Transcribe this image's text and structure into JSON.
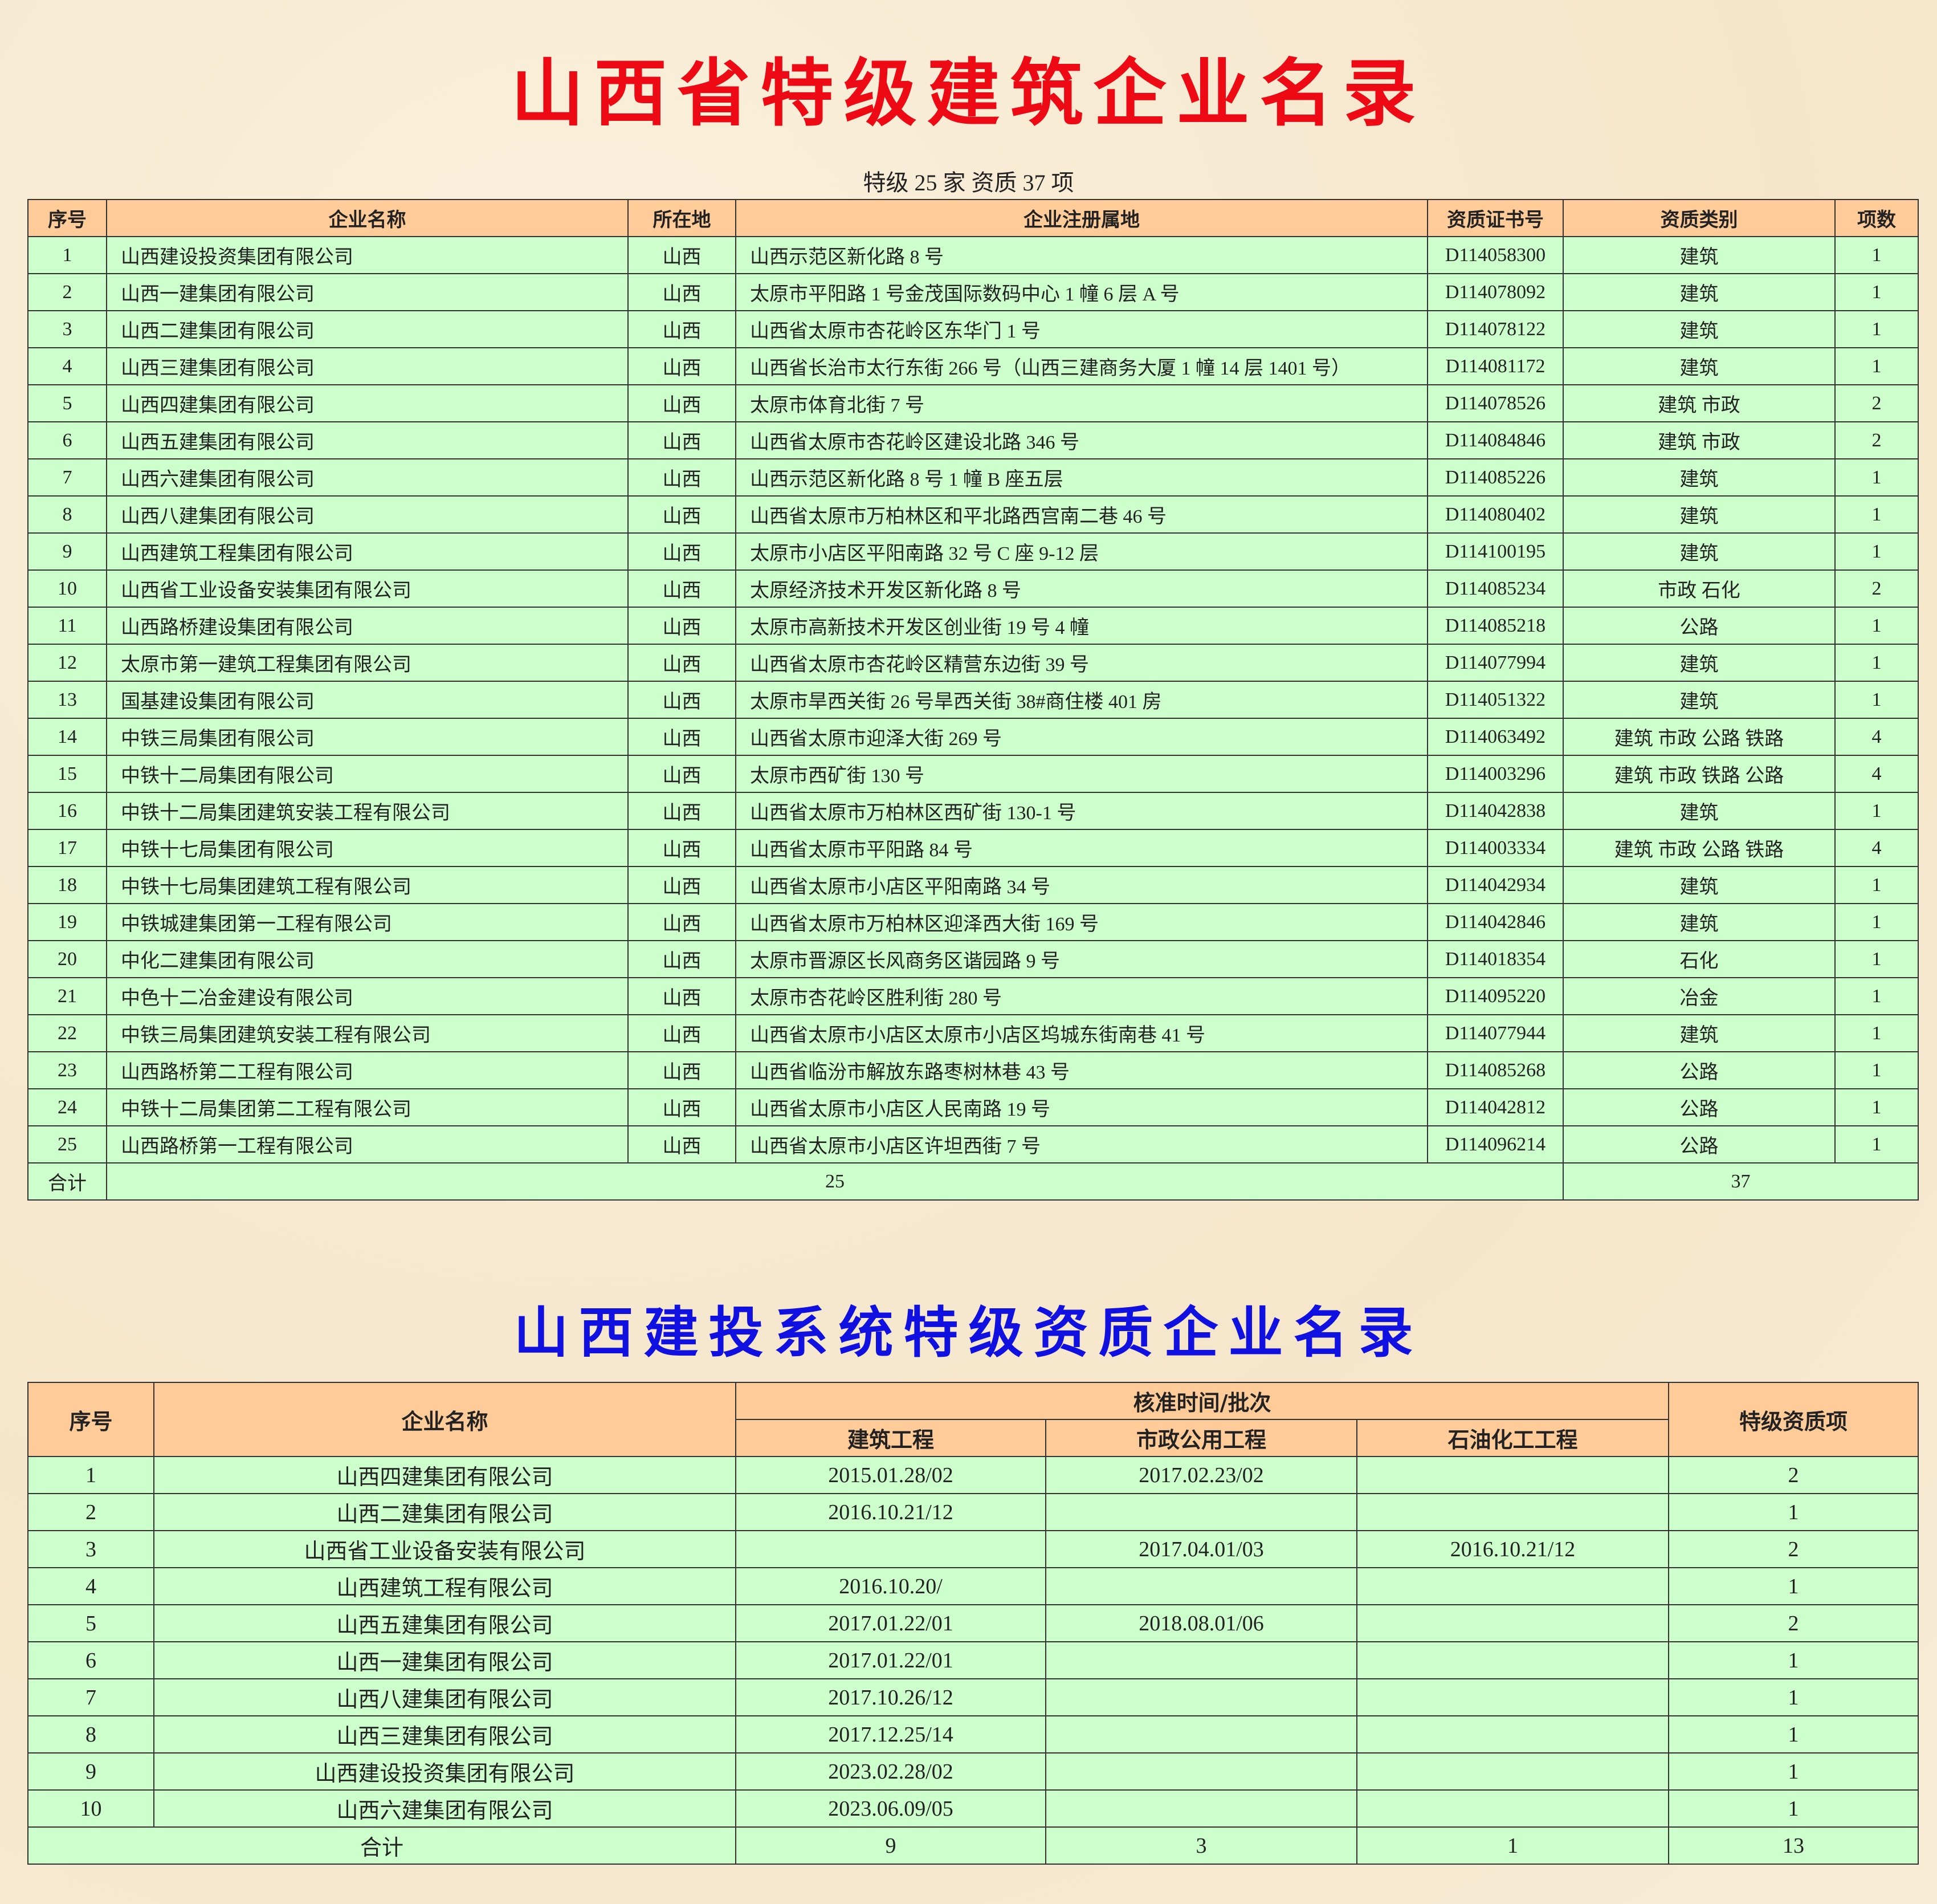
{
  "title1": "山西省特级建筑企业名录",
  "subtitle1": "特级 25 家  资质 37 项",
  "table1": {
    "header": [
      "序号",
      "企业名称",
      "所在地",
      "企业注册属地",
      "资质证书号",
      "资质类别",
      "项数"
    ],
    "rows": [
      [
        1,
        "山西建设投资集团有限公司",
        "山西",
        "山西示范区新化路 8 号",
        "D114058300",
        "建筑",
        1
      ],
      [
        2,
        "山西一建集团有限公司",
        "山西",
        "太原市平阳路 1 号金茂国际数码中心 1 幢 6 层 A 号",
        "D114078092",
        "建筑",
        1
      ],
      [
        3,
        "山西二建集团有限公司",
        "山西",
        "山西省太原市杏花岭区东华门 1 号",
        "D114078122",
        "建筑",
        1
      ],
      [
        4,
        "山西三建集团有限公司",
        "山西",
        "山西省长治市太行东街 266 号（山西三建商务大厦 1 幢 14 层 1401 号）",
        "D114081172",
        "建筑",
        1
      ],
      [
        5,
        "山西四建集团有限公司",
        "山西",
        "太原市体育北街 7 号",
        "D114078526",
        "建筑  市政",
        2
      ],
      [
        6,
        "山西五建集团有限公司",
        "山西",
        "山西省太原市杏花岭区建设北路 346 号",
        "D114084846",
        "建筑  市政",
        2
      ],
      [
        7,
        "山西六建集团有限公司",
        "山西",
        "山西示范区新化路 8 号 1 幢 B 座五层",
        "D114085226",
        "建筑",
        1
      ],
      [
        8,
        "山西八建集团有限公司",
        "山西",
        "山西省太原市万柏林区和平北路西宫南二巷 46 号",
        "D114080402",
        "建筑",
        1
      ],
      [
        9,
        "山西建筑工程集团有限公司",
        "山西",
        "太原市小店区平阳南路 32 号 C 座 9-12 层",
        "D114100195",
        "建筑",
        1
      ],
      [
        10,
        "山西省工业设备安装集团有限公司",
        "山西",
        "太原经济技术开发区新化路 8 号",
        "D114085234",
        "市政  石化",
        2
      ],
      [
        11,
        "山西路桥建设集团有限公司",
        "山西",
        "太原市高新技术开发区创业街 19 号 4 幢",
        "D114085218",
        "公路",
        1
      ],
      [
        12,
        "太原市第一建筑工程集团有限公司",
        "山西",
        "山西省太原市杏花岭区精营东边街 39 号",
        "D114077994",
        "建筑",
        1
      ],
      [
        13,
        "国基建设集团有限公司",
        "山西",
        "太原市旱西关街 26 号旱西关街 38#商住楼 401 房",
        "D114051322",
        "建筑",
        1
      ],
      [
        14,
        "中铁三局集团有限公司",
        "山西",
        "山西省太原市迎泽大街 269 号",
        "D114063492",
        "建筑  市政  公路  铁路",
        4
      ],
      [
        15,
        "中铁十二局集团有限公司",
        "山西",
        "太原市西矿街 130 号",
        "D114003296",
        "建筑  市政  铁路  公路",
        4
      ],
      [
        16,
        "中铁十二局集团建筑安装工程有限公司",
        "山西",
        "山西省太原市万柏林区西矿街 130-1 号",
        "D114042838",
        "建筑",
        1
      ],
      [
        17,
        "中铁十七局集团有限公司",
        "山西",
        "山西省太原市平阳路 84 号",
        "D114003334",
        "建筑  市政  公路  铁路",
        4
      ],
      [
        18,
        "中铁十七局集团建筑工程有限公司",
        "山西",
        "山西省太原市小店区平阳南路 34 号",
        "D114042934",
        "建筑",
        1
      ],
      [
        19,
        "中铁城建集团第一工程有限公司",
        "山西",
        "山西省太原市万柏林区迎泽西大街 169 号",
        "D114042846",
        "建筑",
        1
      ],
      [
        20,
        "中化二建集团有限公司",
        "山西",
        "太原市晋源区长风商务区谐园路 9 号",
        "D114018354",
        "石化",
        1
      ],
      [
        21,
        "中色十二冶金建设有限公司",
        "山西",
        "太原市杏花岭区胜利街 280 号",
        "D114095220",
        "冶金",
        1
      ],
      [
        22,
        "中铁三局集团建筑安装工程有限公司",
        "山西",
        "山西省太原市小店区太原市小店区坞城东街南巷 41 号",
        "D114077944",
        "建筑",
        1
      ],
      [
        23,
        "山西路桥第二工程有限公司",
        "山西",
        "山西省临汾市解放东路枣树林巷 43 号",
        "D114085268",
        "公路",
        1
      ],
      [
        24,
        "中铁十二局集团第二工程有限公司",
        "山西",
        "山西省太原市小店区人民南路 19 号",
        "D114042812",
        "公路",
        1
      ],
      [
        25,
        "山西路桥第一工程有限公司",
        "山西",
        "山西省太原市小店区许坦西街 7 号",
        "D114096214",
        "公路",
        1
      ]
    ],
    "total": {
      "label": "合计",
      "companies": 25,
      "items": 37
    }
  },
  "title2": "山西建投系统特级资质企业名录",
  "table2": {
    "header": {
      "no": "序号",
      "name": "企业名称",
      "group": "核准时间/批次",
      "sub": [
        "建筑工程",
        "市政公用工程",
        "石油化工工程"
      ],
      "items": "特级资质项"
    },
    "rows": [
      [
        1,
        "山西四建集团有限公司",
        "2015.01.28/02",
        "2017.02.23/02",
        null,
        2
      ],
      [
        2,
        "山西二建集团有限公司",
        "2016.10.21/12",
        null,
        null,
        1
      ],
      [
        3,
        "山西省工业设备安装有限公司",
        null,
        "2017.04.01/03",
        "2016.10.21/12",
        2
      ],
      [
        4,
        "山西建筑工程有限公司",
        "2016.10.20/",
        null,
        null,
        1
      ],
      [
        5,
        "山西五建集团有限公司",
        "2017.01.22/01",
        "2018.08.01/06",
        null,
        2
      ],
      [
        6,
        "山西一建集团有限公司",
        "2017.01.22/01",
        null,
        null,
        1
      ],
      [
        7,
        "山西八建集团有限公司",
        "2017.10.26/12",
        null,
        null,
        1
      ],
      [
        8,
        "山西三建集团有限公司",
        "2017.12.25/14",
        null,
        null,
        1
      ],
      [
        9,
        "山西建设投资集团有限公司",
        "2023.02.28/02",
        null,
        null,
        1
      ],
      [
        10,
        "山西六建集团有限公司",
        "2023.06.09/05",
        null,
        null,
        1
      ]
    ],
    "total": {
      "label": "合计",
      "values": [
        9,
        3,
        1,
        13
      ]
    }
  }
}
